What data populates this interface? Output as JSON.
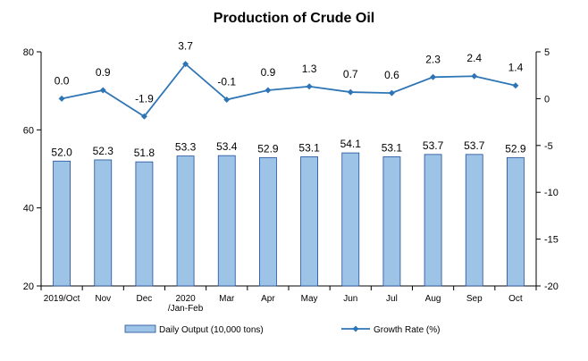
{
  "chart_data": {
    "type": "bar",
    "title": "Production of Crude Oil",
    "categories": [
      "2019/Oct",
      "Nov",
      "Dec",
      "2020\n/Jan-Feb",
      "Mar",
      "Apr",
      "May",
      "Jun",
      "Jul",
      "Aug",
      "Sep",
      "Oct"
    ],
    "series": [
      {
        "name": "Daily Output (10,000 tons)",
        "type": "bar",
        "axis": "left",
        "values": [
          52.0,
          52.3,
          51.8,
          53.3,
          53.4,
          52.9,
          53.1,
          54.1,
          53.1,
          53.7,
          53.7,
          52.9
        ],
        "labels": [
          "52.0",
          "52.3",
          "51.8",
          "53.3",
          "53.4",
          "52.9",
          "53.1",
          "54.1",
          "53.1",
          "53.7",
          "53.7",
          "52.9"
        ]
      },
      {
        "name": "Growth Rate (%)",
        "type": "line",
        "axis": "right",
        "values": [
          0.0,
          0.9,
          -1.9,
          3.7,
          -0.1,
          0.9,
          1.3,
          0.7,
          0.6,
          2.3,
          2.4,
          1.4
        ],
        "labels": [
          "0.0",
          "0.9",
          "-1.9",
          "3.7",
          "-0.1",
          "0.9",
          "1.3",
          "0.7",
          "0.6",
          "2.3",
          "2.4",
          "1.4"
        ]
      }
    ],
    "left_axis": {
      "ylim": [
        20,
        80
      ],
      "ticks": [
        20,
        40,
        60,
        80
      ]
    },
    "right_axis": {
      "ylim": [
        -20,
        5
      ],
      "ticks": [
        5,
        0,
        -5,
        -10,
        -15,
        -20
      ]
    },
    "grid": false,
    "legend_position": "bottom",
    "colors": {
      "bar_fill": "#9DC3E6",
      "bar_stroke": "#1F4E9A",
      "line": "#2E75B6",
      "axis": "#000000"
    }
  }
}
